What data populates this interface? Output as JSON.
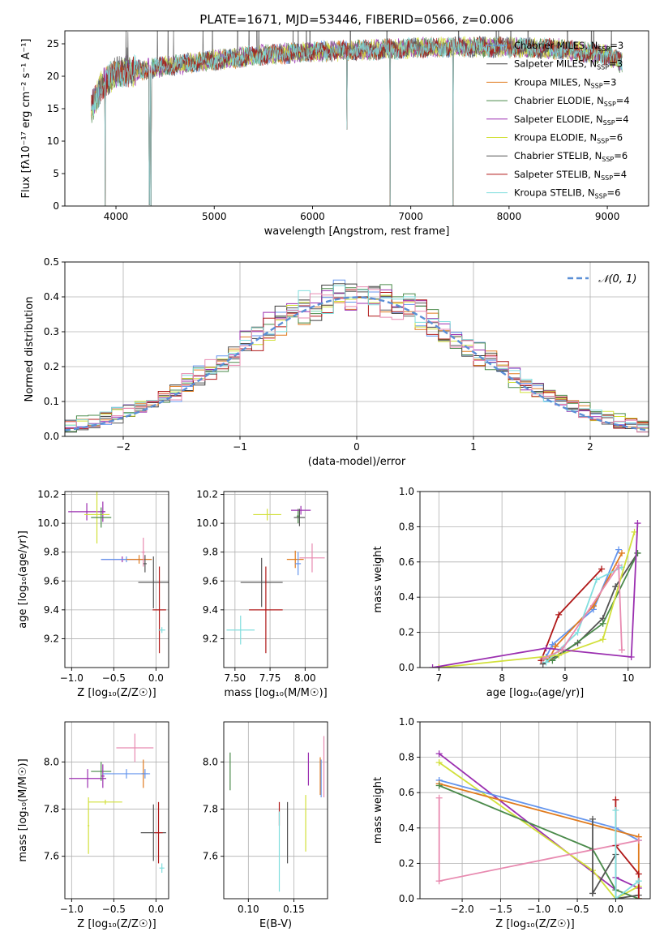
{
  "figure": {
    "title": "PLATE=1671, MJD=53446, FIBERID=0566, z=0.006"
  },
  "chart_data": [
    {
      "id": "spectrum",
      "type": "line",
      "xlabel": "wavelength [Angstrom, rest frame]",
      "ylabel": "Flux [fλ10⁻¹⁷ erg cm⁻² s⁻¹ A⁻¹]",
      "xlim": [
        3480,
        9420
      ],
      "ylim": [
        0,
        27
      ],
      "xticks": [
        4000,
        5000,
        6000,
        7000,
        8000,
        9000
      ],
      "yticks": [
        0,
        5,
        10,
        15,
        20,
        25
      ],
      "legend_position": "upper right",
      "legend": [
        {
          "label": "Chabrier MILES, N",
          "sub": "SSP",
          "suffix": "=3",
          "color": "#6495ed"
        },
        {
          "label": "Salpeter MILES, N",
          "sub": "SSP",
          "suffix": "=3",
          "color": "#3c3c3c"
        },
        {
          "label": "Kroupa MILES, N",
          "sub": "SSP",
          "suffix": "=3",
          "color": "#e07b1e"
        },
        {
          "label": "Chabrier ELODIE, N",
          "sub": "SSP",
          "suffix": "=4",
          "color": "#4a8a4a"
        },
        {
          "label": "Salpeter ELODIE, N",
          "sub": "SSP",
          "suffix": "=4",
          "color": "#9b2fb0"
        },
        {
          "label": "Kroupa ELODIE, N",
          "sub": "SSP",
          "suffix": "=6",
          "color": "#d2e03a"
        },
        {
          "label": "Chabrier STELIB, N",
          "sub": "SSP",
          "suffix": "=6",
          "color": "#555555"
        },
        {
          "label": "Salpeter STELIB, N",
          "sub": "SSP",
          "suffix": "=4",
          "color": "#b01818"
        },
        {
          "label": "Kroupa STELIB, N",
          "sub": "SSP",
          "suffix": "=6",
          "color": "#80dede"
        }
      ],
      "continuum": [
        [
          3750,
          15
        ],
        [
          3850,
          18.5
        ],
        [
          4000,
          20.5
        ],
        [
          4500,
          21.5
        ],
        [
          5000,
          22.5
        ],
        [
          5500,
          23.3
        ],
        [
          6000,
          23.8
        ],
        [
          6500,
          24
        ],
        [
          7000,
          24.3
        ],
        [
          7500,
          24.5
        ],
        [
          8000,
          24.5
        ],
        [
          8500,
          24.2
        ],
        [
          9000,
          23.3
        ],
        [
          9150,
          22
        ]
      ],
      "absorption_lines": [
        [
          3890,
          0
        ],
        [
          4341,
          0.2
        ],
        [
          4355,
          0
        ],
        [
          6350,
          11.8
        ],
        [
          6790,
          0
        ],
        [
          7430,
          0
        ]
      ],
      "data_range": [
        3750,
        9150
      ]
    },
    {
      "id": "residuals",
      "type": "histogram",
      "xlabel": "(data-model)/error",
      "ylabel": "Normed distribution",
      "xlim": [
        -2.5,
        2.5
      ],
      "ylim": [
        0,
        0.5
      ],
      "xticks": [
        -2,
        -1,
        0,
        1,
        2
      ],
      "yticks": [
        0.0,
        0.1,
        0.2,
        0.3,
        0.4,
        0.5
      ],
      "reference_label": "𝒩(0, 1)",
      "reference_color": "#5b8fd6",
      "bin_width": 0.1,
      "series_colors": [
        "#6495ed",
        "#3c3c3c",
        "#e07b1e",
        "#4a8a4a",
        "#9b2fb0",
        "#d2e03a",
        "#555555",
        "#b01818",
        "#80dede",
        "#e88ab0"
      ]
    },
    {
      "id": "age-vs-Z",
      "type": "scatter",
      "xlabel": "Z [log₁₀(Z/Z☉)]",
      "ylabel": "age  [log₁₀(age/yr)]",
      "xlim": [
        -1.08,
        0.15
      ],
      "ylim": [
        9.0,
        10.22
      ],
      "xticks": [
        -1.0,
        -0.5,
        0.0
      ],
      "xticklabels": [
        "−1.0",
        "−0.5",
        "0.0"
      ],
      "yticks": [
        9.2,
        9.4,
        9.6,
        9.8,
        10.0,
        10.2
      ],
      "points": [
        {
          "x": -0.82,
          "y": 10.08,
          "xerr": 0.22,
          "yerr": 0.06,
          "color": "#9b2fb0"
        },
        {
          "x": -0.63,
          "y": 10.08,
          "xerr": 0.03,
          "yerr": 0.07,
          "color": "#9b2fb0"
        },
        {
          "x": -0.7,
          "y": 10.06,
          "xerr": 0.15,
          "yerr": 0.2,
          "color": "#d2e03a"
        },
        {
          "x": -0.65,
          "y": 10.04,
          "xerr": 0.12,
          "yerr": 0.07,
          "color": "#4a8a4a"
        },
        {
          "x": -0.4,
          "y": 9.75,
          "xerr": 0.25,
          "yerr": 0.02,
          "color": "#9b2fb0"
        },
        {
          "x": -0.35,
          "y": 9.75,
          "xerr": 0.3,
          "yerr": 0.02,
          "color": "#6495ed"
        },
        {
          "x": -0.2,
          "y": 9.75,
          "xerr": 0.15,
          "yerr": 0.03,
          "color": "#e07b1e"
        },
        {
          "x": -0.15,
          "y": 9.8,
          "xerr": 0.02,
          "yerr": 0.1,
          "color": "#e88ab0"
        },
        {
          "x": -0.13,
          "y": 9.72,
          "xerr": 0.02,
          "yerr": 0.06,
          "color": "#555555"
        },
        {
          "x": -0.03,
          "y": 9.59,
          "xerr": 0.18,
          "yerr": 0.18,
          "color": "#555555"
        },
        {
          "x": 0.04,
          "y": 9.4,
          "xerr": 0.08,
          "yerr": 0.3,
          "color": "#b01818"
        },
        {
          "x": 0.07,
          "y": 9.26,
          "xerr": 0.04,
          "yerr": 0.02,
          "color": "#80dede"
        }
      ]
    },
    {
      "id": "age-vs-mass",
      "type": "scatter",
      "xlabel": "mass [log₁₀(M/M☉)]",
      "ylabel": "",
      "xlim": [
        7.42,
        8.16
      ],
      "ylim": [
        9.0,
        10.22
      ],
      "xticks": [
        7.5,
        7.75,
        8.0
      ],
      "xticklabels": [
        "7.50",
        "7.75",
        "8.00"
      ],
      "yticks": [
        9.2,
        9.4,
        9.6,
        9.8,
        10.0,
        10.2
      ],
      "points": [
        {
          "x": 7.73,
          "y": 10.06,
          "xerr": 0.1,
          "yerr": 0.04,
          "color": "#d2e03a"
        },
        {
          "x": 7.95,
          "y": 10.05,
          "xerr": 0.01,
          "yerr": 0.05,
          "color": "#4a8a4a"
        },
        {
          "x": 7.97,
          "y": 10.09,
          "xerr": 0.07,
          "yerr": 0.03,
          "color": "#9b2fb0"
        },
        {
          "x": 7.96,
          "y": 10.04,
          "xerr": 0.04,
          "yerr": 0.06,
          "color": "#555555"
        },
        {
          "x": 7.93,
          "y": 9.75,
          "xerr": 0.06,
          "yerr": 0.06,
          "color": "#e07b1e"
        },
        {
          "x": 7.95,
          "y": 9.72,
          "xerr": 0.02,
          "yerr": 0.08,
          "color": "#6495ed"
        },
        {
          "x": 8.05,
          "y": 9.76,
          "xerr": 0.09,
          "yerr": 0.1,
          "color": "#e88ab0"
        },
        {
          "x": 7.69,
          "y": 9.59,
          "xerr": 0.15,
          "yerr": 0.17,
          "color": "#555555"
        },
        {
          "x": 7.72,
          "y": 9.4,
          "xerr": 0.12,
          "yerr": 0.3,
          "color": "#b01818"
        },
        {
          "x": 7.54,
          "y": 9.26,
          "xerr": 0.1,
          "yerr": 0.1,
          "color": "#80dede"
        }
      ]
    },
    {
      "id": "weight-vs-age",
      "type": "line",
      "xlabel": "age  [log₁₀(age/yr)]",
      "ylabel": "mass weight",
      "xlim": [
        6.7,
        10.35
      ],
      "ylim": [
        0,
        1
      ],
      "xticks": [
        7,
        8,
        9,
        10
      ],
      "yticks": [
        0.0,
        0.2,
        0.4,
        0.6,
        0.8,
        1.0
      ],
      "series": [
        {
          "color": "#b01818",
          "x": [
            8.62,
            8.9,
            9.58
          ],
          "y": [
            0.04,
            0.3,
            0.56
          ]
        },
        {
          "color": "#555555",
          "x": [
            8.65,
            9.2,
            9.6,
            9.8,
            10.15
          ],
          "y": [
            0.02,
            0.14,
            0.28,
            0.46,
            0.65
          ]
        },
        {
          "color": "#4a8a4a",
          "x": [
            8.65,
            8.8,
            9.6,
            10.15
          ],
          "y": [
            0.05,
            0.04,
            0.25,
            0.65
          ]
        },
        {
          "color": "#6495ed",
          "x": [
            8.7,
            8.8,
            9.45,
            9.85
          ],
          "y": [
            0.06,
            0.13,
            0.33,
            0.67
          ]
        },
        {
          "color": "#e07b1e",
          "x": [
            8.75,
            8.85,
            9.45,
            9.9
          ],
          "y": [
            0.05,
            0.12,
            0.35,
            0.65
          ]
        },
        {
          "color": "#80dede",
          "x": [
            8.7,
            9.2,
            9.5,
            9.9
          ],
          "y": [
            0.03,
            0.2,
            0.5,
            0.57
          ]
        },
        {
          "color": "#d2e03a",
          "x": [
            7.0,
            8.9,
            9.6,
            10.1
          ],
          "y": [
            0.0,
            0.07,
            0.16,
            0.77
          ]
        },
        {
          "color": "#9b2fb0",
          "x": [
            6.9,
            8.7,
            10.05,
            10.15
          ],
          "y": [
            0.0,
            0.11,
            0.06,
            0.82
          ]
        },
        {
          "color": "#e88ab0",
          "x": [
            8.65,
            8.95,
            9.85,
            9.9
          ],
          "y": [
            0.05,
            0.1,
            0.58,
            0.1
          ]
        }
      ]
    },
    {
      "id": "mass-vs-Z",
      "type": "scatter",
      "xlabel": "Z [log₁₀(Z/Z☉)]",
      "ylabel": "mass [log₁₀(M/M☉)]",
      "xlim": [
        -1.08,
        0.15
      ],
      "ylim": [
        7.42,
        8.17
      ],
      "xticks": [
        -1.0,
        -0.5,
        0.0
      ],
      "xticklabels": [
        "−1.0",
        "−0.5",
        "0.0"
      ],
      "yticks": [
        7.6,
        7.8,
        8.0
      ],
      "yticklabels": [
        "7.6",
        "7.8",
        "8.0"
      ],
      "points": [
        {
          "x": -0.81,
          "y": 7.93,
          "xerr": 0.22,
          "yerr": 0.04,
          "color": "#9b2fb0"
        },
        {
          "x": -0.65,
          "y": 7.96,
          "xerr": 0.12,
          "yerr": 0.04,
          "color": "#4a8a4a"
        },
        {
          "x": -0.63,
          "y": 7.94,
          "xerr": 0.02,
          "yerr": 0.05,
          "color": "#9b2fb0"
        },
        {
          "x": -0.6,
          "y": 7.83,
          "xerr": 0.2,
          "yerr": 0.01,
          "color": "#d2e03a"
        },
        {
          "x": -0.35,
          "y": 7.95,
          "xerr": 0.28,
          "yerr": 0.02,
          "color": "#6495ed"
        },
        {
          "x": -0.25,
          "y": 8.06,
          "xerr": 0.22,
          "yerr": 0.06,
          "color": "#e88ab0"
        },
        {
          "x": -0.15,
          "y": 7.95,
          "xerr": 0.02,
          "yerr": 0.06,
          "color": "#e07b1e"
        },
        {
          "x": -0.13,
          "y": 7.95,
          "xerr": 0.04,
          "yerr": 0.02,
          "color": "#6495ed"
        },
        {
          "x": -0.03,
          "y": 7.7,
          "xerr": 0.15,
          "yerr": 0.12,
          "color": "#555555"
        },
        {
          "x": 0.03,
          "y": 7.7,
          "xerr": 0.05,
          "yerr": 0.13,
          "color": "#b01818"
        },
        {
          "x": 0.07,
          "y": 7.55,
          "xerr": 0.03,
          "yerr": 0.02,
          "color": "#80dede"
        },
        {
          "x": -0.8,
          "y": 7.73,
          "xerr": 0.01,
          "yerr": 0.12,
          "color": "#d2e03a"
        }
      ]
    },
    {
      "id": "mass-vs-EBV",
      "type": "scatter",
      "xlabel": "E(B-V)",
      "ylabel": "",
      "xlim": [
        0.073,
        0.187
      ],
      "ylim": [
        7.42,
        8.17
      ],
      "xticks": [
        0.1,
        0.15
      ],
      "xticklabels": [
        "0.10",
        "0.15"
      ],
      "yticks": [
        7.6,
        7.8,
        8.0
      ],
      "yticklabels": [
        "7.6",
        "7.8",
        "8.0"
      ],
      "points": [
        {
          "x": 0.08,
          "y": 7.96,
          "xerr": 0.0,
          "yerr": 0.08,
          "color": "#4a8a4a"
        },
        {
          "x": 0.134,
          "y": 7.78,
          "xerr": 0.0,
          "yerr": 0.05,
          "color": "#b01818"
        },
        {
          "x": 0.134,
          "y": 7.62,
          "xerr": 0.0,
          "yerr": 0.17,
          "color": "#80dede"
        },
        {
          "x": 0.143,
          "y": 7.7,
          "xerr": 0.0,
          "yerr": 0.13,
          "color": "#555555"
        },
        {
          "x": 0.163,
          "y": 7.74,
          "xerr": 0.0,
          "yerr": 0.12,
          "color": "#d2e03a"
        },
        {
          "x": 0.166,
          "y": 7.97,
          "xerr": 0.0,
          "yerr": 0.07,
          "color": "#9b2fb0"
        },
        {
          "x": 0.179,
          "y": 7.94,
          "xerr": 0.0,
          "yerr": 0.08,
          "color": "#e07b1e"
        },
        {
          "x": 0.18,
          "y": 7.93,
          "xerr": 0.0,
          "yerr": 0.08,
          "color": "#6495ed"
        },
        {
          "x": 0.183,
          "y": 7.98,
          "xerr": 0.0,
          "yerr": 0.13,
          "color": "#e88ab0"
        }
      ]
    },
    {
      "id": "weight-vs-Z",
      "type": "line",
      "xlabel": "Z [log₁₀(Z/Z☉)]",
      "ylabel": "mass weight",
      "xlim": [
        -2.55,
        0.45
      ],
      "ylim": [
        0,
        1
      ],
      "xticks": [
        -2.0,
        -1.5,
        -1.0,
        -0.5,
        0.0
      ],
      "xticklabels": [
        "−2.0",
        "−1.5",
        "−1.0",
        "−0.5",
        "0.0"
      ],
      "yticks": [
        0.0,
        0.2,
        0.4,
        0.6,
        0.8,
        1.0
      ],
      "series": [
        {
          "color": "#9b2fb0",
          "x": [
            -2.3,
            0.0,
            0.0,
            0.3
          ],
          "y": [
            0.82,
            0.05,
            0.12,
            0.06
          ]
        },
        {
          "color": "#d2e03a",
          "x": [
            -2.3,
            -0.3,
            0.0,
            0.3
          ],
          "y": [
            0.77,
            0.16,
            0.0,
            0.07
          ]
        },
        {
          "color": "#6495ed",
          "x": [
            -2.3,
            0.0,
            0.3
          ],
          "y": [
            0.67,
            0.4,
            0.33
          ]
        },
        {
          "color": "#e07b1e",
          "x": [
            -2.3,
            0.3,
            0.3
          ],
          "y": [
            0.65,
            0.35,
            0.0
          ]
        },
        {
          "color": "#4a8a4a",
          "x": [
            -2.3,
            -0.3,
            0.0,
            0.3
          ],
          "y": [
            0.64,
            0.28,
            0.05,
            0.0
          ]
        },
        {
          "color": "#e88ab0",
          "x": [
            -2.3,
            -2.3,
            0.3
          ],
          "y": [
            0.57,
            0.1,
            0.33
          ]
        },
        {
          "color": "#555555",
          "x": [
            -0.3,
            -0.3,
            0.0,
            0.0,
            0.3
          ],
          "y": [
            0.45,
            0.03,
            0.25,
            0.0,
            0.02
          ]
        },
        {
          "color": "#b01818",
          "x": [
            0.0,
            0.0,
            0.3,
            0.3
          ],
          "y": [
            0.56,
            0.3,
            0.14,
            0.0
          ]
        },
        {
          "color": "#80dede",
          "x": [
            0.0,
            0.0,
            0.3
          ],
          "y": [
            0.5,
            0.0,
            0.1
          ]
        }
      ]
    }
  ]
}
